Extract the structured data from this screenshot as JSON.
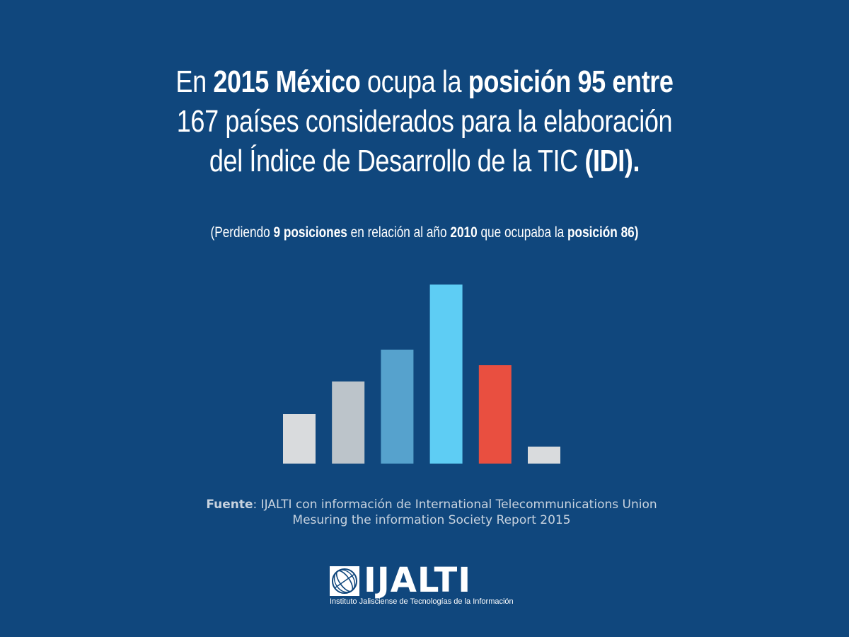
{
  "headline": {
    "l1_a": "En ",
    "l1_b": "2015 México",
    "l1_c": " ocupa la ",
    "l1_d": "posición 95 entre",
    "l2": "167 países considerados para la elaboración",
    "l3_a": "del Índice de Desarrollo de la TIC ",
    "l3_b": "(IDI)."
  },
  "subline": {
    "a": "(Perdiendo ",
    "b": "9 posiciones",
    "c": " en relación al año ",
    "d": "2010",
    "e": " que ocupaba la  ",
    "f": "posición 86)"
  },
  "chart_data": {
    "type": "bar",
    "categories": [
      "",
      "",
      "",
      "",
      "",
      ""
    ],
    "values": [
      70,
      116,
      161,
      253,
      139,
      24
    ],
    "colors": [
      "#d9dbdd",
      "#bcc4ca",
      "#56a2cd",
      "#5ecdf4",
      "#e94f40",
      "#d9dbdd"
    ],
    "title": "",
    "xlabel": "",
    "ylabel": "",
    "ylim": [
      0,
      253
    ],
    "grid": false
  },
  "source": {
    "label": "Fuente",
    "line1": ": IJALTI con información de International Telecommunications Union",
    "line2": "Mesuring the information Society Report 2015"
  },
  "logo": {
    "word": "IJALTI",
    "tagline": "Instituto Jalisciense de Tecnologías de la Información"
  }
}
